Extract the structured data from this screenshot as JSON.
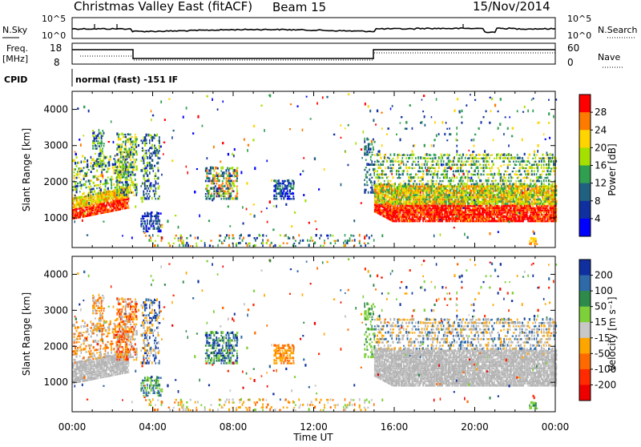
{
  "header": {
    "title": "Christmas Valley East (fitACF)",
    "beam": "Beam 15",
    "date": "15/Nov/2014"
  },
  "panels": {
    "nsky_label": "N.Sky",
    "nsearch_label": "N.Search",
    "nsky_ticks": [
      "10^5",
      "10^0"
    ],
    "freq_label_1": "Freq.",
    "freq_label_2": "[MHz]",
    "freq_ticks": [
      "18",
      "8"
    ],
    "nave_label": "Nave",
    "nave_ticks": [
      "60",
      "0"
    ],
    "cpid_label": "CPID",
    "cpid_text": "normal (fast) -151 IF"
  },
  "chart_data": [
    {
      "type": "heatmap",
      "title": "Power",
      "ylabel": "Slant Range [km]",
      "ylim": [
        180,
        4500
      ],
      "yticks": [
        1000,
        2000,
        3000,
        4000
      ],
      "xlabel": "Time UT",
      "x_tick_labels": [
        "00:00",
        "04:00",
        "08:00",
        "12:00",
        "16:00",
        "20:00",
        "00:00"
      ],
      "xlim_hours": [
        0,
        24
      ],
      "colorbar": {
        "label": "Power [dB]",
        "ticks": [
          "28",
          "24",
          "20",
          "16",
          "12",
          "8",
          "4"
        ],
        "colors": [
          "#ff0000",
          "#ff7a00",
          "#ffd400",
          "#a6e000",
          "#30a050",
          "#206080",
          "#1030a0",
          "#0000ff"
        ]
      },
      "features": [
        {
          "time_h": [
            0.0,
            2.8
          ],
          "range_km": [
            900,
            1500
          ],
          "level": "high"
        },
        {
          "time_h": [
            15.0,
            24.0
          ],
          "range_km": [
            900,
            1800
          ],
          "level": "high"
        },
        {
          "time_h": [
            15.0,
            24.0
          ],
          "range_km": [
            1800,
            2700
          ],
          "level": "medium"
        },
        {
          "time_h": [
            6.6,
            8.2
          ],
          "range_km": [
            1500,
            2400
          ],
          "level": "low"
        },
        {
          "time_h": [
            10.0,
            11.0
          ],
          "range_km": [
            1500,
            2000
          ],
          "level": "low"
        }
      ]
    },
    {
      "type": "heatmap",
      "title": "Velocity",
      "ylabel": "Slant Range [km]",
      "ylim": [
        180,
        4500
      ],
      "yticks": [
        1000,
        2000,
        3000,
        4000
      ],
      "xlabel": "Time UT",
      "x_tick_labels": [
        "00:00",
        "04:00",
        "08:00",
        "12:00",
        "16:00",
        "20:00",
        "00:00"
      ],
      "xlim_hours": [
        0,
        24
      ],
      "colorbar": {
        "label": "Velocity [m s⁻¹]",
        "ticks": [
          "200",
          "100",
          "50",
          "15",
          "-15",
          "-50",
          "-100",
          "-200"
        ],
        "colors": [
          "#1030a0",
          "#2e6aa8",
          "#2e8a4a",
          "#7ed03a",
          "#c8c8c8",
          "#ffa500",
          "#ff6a00",
          "#ff2a00",
          "#ee0000"
        ]
      },
      "features": [
        {
          "time_h": [
            0.0,
            3.0
          ],
          "range_km": [
            900,
            2000
          ],
          "level": "ground"
        },
        {
          "time_h": [
            15.0,
            24.0
          ],
          "range_km": [
            900,
            1800
          ],
          "level": "ground"
        },
        {
          "time_h": [
            6.6,
            8.2
          ],
          "range_km": [
            1500,
            2400
          ],
          "level": "positive"
        },
        {
          "time_h": [
            10.0,
            11.0
          ],
          "range_km": [
            1500,
            2000
          ],
          "level": "negative"
        }
      ]
    }
  ],
  "colors": {
    "ground_scatter": "#b4b4b4"
  }
}
